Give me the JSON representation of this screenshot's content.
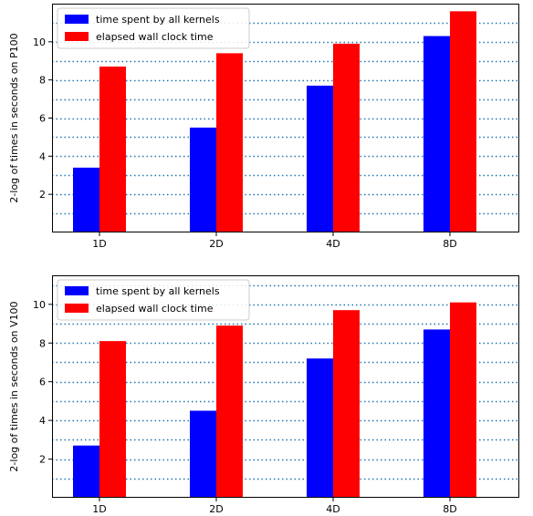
{
  "chart_data": [
    {
      "type": "bar",
      "categories": [
        "1D",
        "2D",
        "4D",
        "8D"
      ],
      "series": [
        {
          "name": "time spent by all kernels",
          "values": [
            3.4,
            5.5,
            7.7,
            10.3
          ],
          "color": "#0000ff"
        },
        {
          "name": "elapsed wall clock time",
          "values": [
            8.7,
            9.4,
            9.9,
            11.6
          ],
          "color": "#ff0000"
        }
      ],
      "ylabel": "2-log of times in seconds on P100",
      "yticks": [
        2,
        4,
        6,
        8,
        10
      ],
      "ylim": [
        0,
        12
      ],
      "grid": "horizontal dotted lines at every integer",
      "grid_color": "#1f77b4",
      "legend": "top-left"
    },
    {
      "type": "bar",
      "categories": [
        "1D",
        "2D",
        "4D",
        "8D"
      ],
      "series": [
        {
          "name": "time spent by all kernels",
          "values": [
            2.7,
            4.5,
            7.2,
            8.7
          ],
          "color": "#0000ff"
        },
        {
          "name": "elapsed wall clock time",
          "values": [
            8.1,
            8.9,
            9.7,
            10.1
          ],
          "color": "#ff0000"
        }
      ],
      "ylabel": "2-log of times in seconds on V100",
      "yticks": [
        2,
        4,
        6,
        8,
        10
      ],
      "ylim": [
        0,
        11.5
      ],
      "grid": "horizontal dotted lines at every integer",
      "grid_color": "#1f77b4",
      "legend": "top-left"
    }
  ]
}
